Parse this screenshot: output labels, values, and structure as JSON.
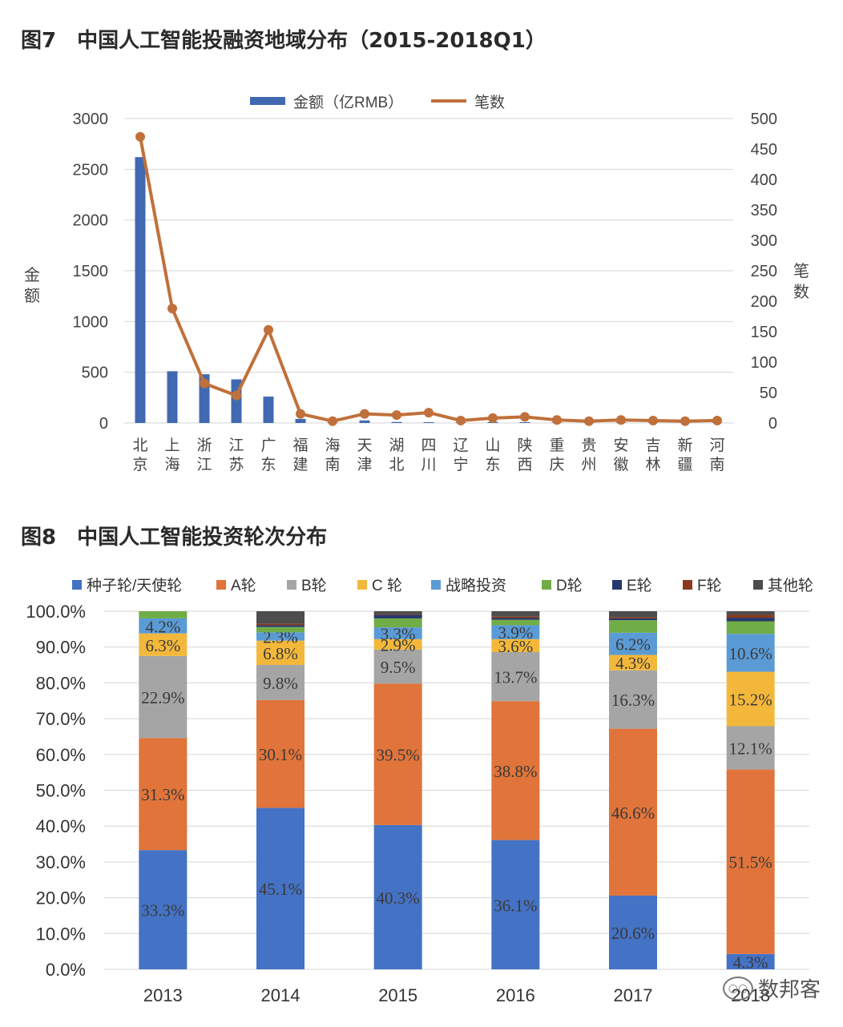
{
  "watermark": {
    "text": "数邦客",
    "icon": "wechat-icon"
  },
  "chart_data": [
    {
      "type": "bar+line",
      "title": "图7　中国人工智能投融资地域分布（2015-2018Q1）",
      "categories": [
        "北京",
        "上海",
        "浙江",
        "江苏",
        "广东",
        "福建",
        "海南",
        "天津",
        "湖北",
        "四川",
        "辽宁",
        "山东",
        "陕西",
        "重庆",
        "贵州",
        "安徽",
        "吉林",
        "新疆",
        "河南"
      ],
      "series": [
        {
          "name": "金额（亿RMB）",
          "type": "bar",
          "axis": "left",
          "values": [
            2620,
            510,
            480,
            430,
            260,
            40,
            5,
            25,
            10,
            8,
            5,
            10,
            8,
            5,
            3,
            5,
            3,
            3,
            3
          ]
        },
        {
          "name": "笔数",
          "type": "line",
          "axis": "right",
          "values": [
            470,
            188,
            65,
            45,
            153,
            15,
            3,
            15,
            13,
            17,
            4,
            8,
            10,
            5,
            3,
            5,
            4,
            3,
            4
          ]
        }
      ],
      "ylabel": "金额",
      "y2label": "笔数",
      "ylim": [
        0,
        3000
      ],
      "yticks": [
        0,
        500,
        1000,
        1500,
        2000,
        2500,
        3000
      ],
      "y2lim": [
        0,
        500
      ],
      "y2ticks": [
        0,
        50,
        100,
        150,
        200,
        250,
        300,
        350,
        400,
        450,
        500
      ],
      "colors": {
        "bar": "#4169b1",
        "line": "#c0703a"
      },
      "legend": "top"
    },
    {
      "type": "stacked-bar",
      "title": "图8　中国人工智能投资轮次分布",
      "categories": [
        "2013",
        "2014",
        "2015",
        "2016",
        "2017",
        "2018"
      ],
      "series": [
        {
          "name": "种子轮/天使轮",
          "color": "#4472c4",
          "values": [
            33.3,
            45.1,
            40.3,
            36.1,
            20.6,
            4.3
          ],
          "labels": [
            "33.3%",
            "45.1%",
            "40.3%",
            "36.1%",
            "20.6%",
            "4.3%"
          ]
        },
        {
          "name": "A轮",
          "color": "#e0743a",
          "values": [
            31.3,
            30.1,
            39.5,
            38.8,
            46.6,
            51.5
          ],
          "labels": [
            "31.3%",
            "30.1%",
            "39.5%",
            "38.8%",
            "46.6%",
            "51.5%"
          ]
        },
        {
          "name": "B轮",
          "color": "#a5a5a5",
          "values": [
            22.9,
            9.8,
            9.5,
            13.7,
            16.3,
            12.1
          ],
          "labels": [
            "22.9%",
            "9.8%",
            "9.5%",
            "13.7%",
            "16.3%",
            "12.1%"
          ]
        },
        {
          "name": "C 轮",
          "color": "#f3b83b",
          "values": [
            6.3,
            6.8,
            2.9,
            3.6,
            4.3,
            15.2
          ],
          "labels": [
            "6.3%",
            "6.8%",
            "2.9%",
            "3.6%",
            "4.3%",
            "15.2%"
          ]
        },
        {
          "name": "战略投资",
          "color": "#5b9bd5",
          "values": [
            4.2,
            2.3,
            3.3,
            3.9,
            6.2,
            10.6
          ],
          "labels": [
            "4.2%",
            "2.3%",
            "3.3%",
            "3.9%",
            "6.2%",
            "10.6%"
          ]
        },
        {
          "name": "D轮",
          "color": "#70ad47",
          "values": [
            2.0,
            1.5,
            2.5,
            1.5,
            3.5,
            3.5
          ],
          "labels": [
            "",
            "",
            "",
            "",
            "",
            ""
          ]
        },
        {
          "name": "E轮",
          "color": "#26386b",
          "values": [
            0,
            0.5,
            1.0,
            0.5,
            0.5,
            1.0
          ],
          "labels": [
            "",
            "",
            "",
            "",
            "",
            ""
          ]
        },
        {
          "name": "F轮",
          "color": "#8b3a1e",
          "values": [
            0,
            0.4,
            0.2,
            0.4,
            0.3,
            0.8
          ],
          "labels": [
            "",
            "",
            "",
            "",
            "",
            ""
          ]
        },
        {
          "name": "其他轮",
          "color": "#4d4d4d",
          "values": [
            0,
            3.5,
            0.8,
            1.5,
            1.7,
            1.0
          ],
          "labels": [
            "",
            "",
            "",
            "",
            "",
            ""
          ]
        }
      ],
      "ylim": [
        0,
        100
      ],
      "yticks": [
        "0.0%",
        "10.0%",
        "20.0%",
        "30.0%",
        "40.0%",
        "50.0%",
        "60.0%",
        "70.0%",
        "80.0%",
        "90.0%",
        "100.0%"
      ],
      "legend": "top"
    }
  ]
}
